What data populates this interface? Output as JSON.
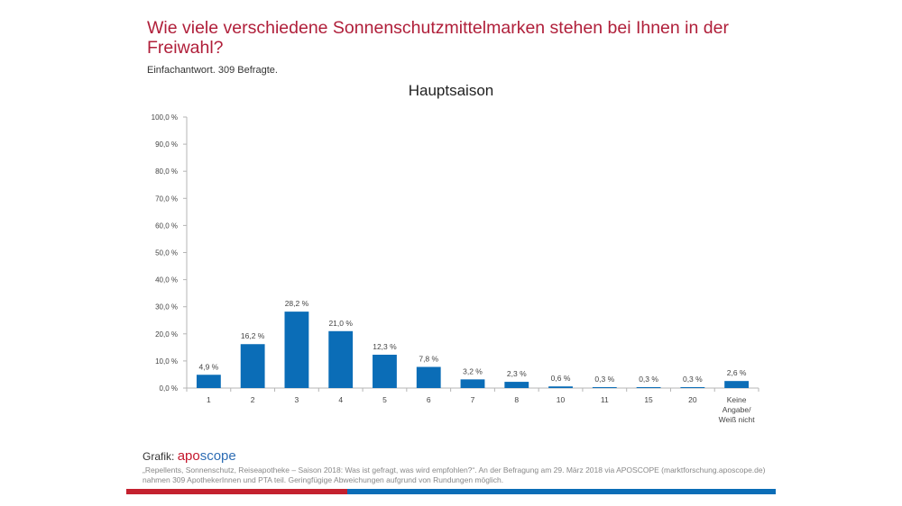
{
  "header": {
    "title": "Wie viele verschiedene Sonnenschutzmittelmarken stehen bei Ihnen in der Freiwahl?",
    "subtitle": "Einfachantwort. 309 Befragte."
  },
  "footer": {
    "grafik_label": "Grafik:",
    "brand_part1": "apo",
    "brand_part2": "scope",
    "footnote": "„Repellents, Sonnenschutz, Reiseapotheke – Saison 2018: Was ist gefragt, was wird empfohlen?“. An der Befragung am 29. März 2018 via APOSCOPE (marktforschung.aposcope.de) nahmen 309 ApothekerInnen und PTA teil. Geringfügige Abweichungen aufgrund von Rundungen möglich.",
    "colors": {
      "red": "#c4212f",
      "blue": "#0b6db7"
    }
  },
  "chart_data": {
    "type": "bar",
    "title": "Hauptsaison",
    "xlabel": "",
    "ylabel": "",
    "ylim": [
      0,
      100
    ],
    "yticks": [
      0,
      10,
      20,
      30,
      40,
      50,
      60,
      70,
      80,
      90,
      100
    ],
    "ytick_labels": [
      "0,0 %",
      "10,0 %",
      "20,0 %",
      "30,0 %",
      "40,0 %",
      "50,0 %",
      "60,0 %",
      "70,0 %",
      "80,0 %",
      "90,0 %",
      "100,0 %"
    ],
    "categories": [
      "1",
      "2",
      "3",
      "4",
      "5",
      "6",
      "7",
      "8",
      "10",
      "11",
      "15",
      "20",
      "Keine Angabe/ Weiß nicht"
    ],
    "category_lines": [
      [
        "1"
      ],
      [
        "2"
      ],
      [
        "3"
      ],
      [
        "4"
      ],
      [
        "5"
      ],
      [
        "6"
      ],
      [
        "7"
      ],
      [
        "8"
      ],
      [
        "10"
      ],
      [
        "11"
      ],
      [
        "15"
      ],
      [
        "20"
      ],
      [
        "Keine",
        "Angabe/",
        "Weiß nicht"
      ]
    ],
    "values": [
      4.9,
      16.2,
      28.2,
      21.0,
      12.3,
      7.8,
      3.2,
      2.3,
      0.6,
      0.3,
      0.3,
      0.3,
      2.6
    ],
    "value_labels": [
      "4,9 %",
      "16,2 %",
      "28,2 %",
      "21,0 %",
      "12,3 %",
      "7,8 %",
      "3,2 %",
      "2,3 %",
      "0,6 %",
      "0,3 %",
      "0,3 %",
      "0,3 %",
      "2,6 %"
    ],
    "bar_color": "#0b6db7",
    "grid": false,
    "legend": "none"
  }
}
